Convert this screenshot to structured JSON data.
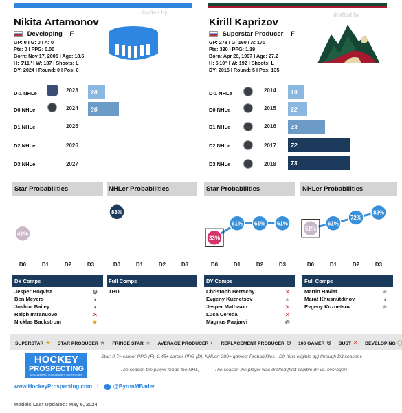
{
  "left": {
    "drafted_by": "drafted by",
    "name": "Nikita Artamonov",
    "status": "Developing",
    "position": "F",
    "stats": [
      "GP: 0 I G: 0 I A: 0",
      "Pts: 0 I PPG: 0.00",
      "Born: Nov 17, 2005 I Age: 18.6",
      "H: 5'11'' I W: 187 I Shoots: L",
      "DY: 2024 I Round: 0 I Pos: 0"
    ],
    "row_labels": [
      "D-1 NHLe",
      "D0 NHLe",
      "D1 NHLe",
      "D2 NHLe",
      "D3 NHLe"
    ],
    "years": [
      "2023",
      "2024",
      "2025",
      "2026",
      "2027"
    ],
    "nhle": [
      20,
      36,
      null,
      null,
      null
    ],
    "star_title": "Star Probabilities",
    "nhler_title": "NHLer Probabilities",
    "star_label": "41%",
    "nhler_label": "83%",
    "dy_comps_title": "DY Comps",
    "dy_comps": [
      {
        "name": "Jesper Boqvist",
        "icon": "replacement-producer-icon"
      },
      {
        "name": "Ben Meyers",
        "icon": "average-producer-icon"
      },
      {
        "name": "Joshua Bailey",
        "icon": "average-producer-icon"
      },
      {
        "name": "Ralph Intranuovo",
        "icon": "bust-icon"
      },
      {
        "name": "Nicklas Backstrom",
        "icon": "superstar-icon"
      }
    ],
    "full_comps_title": "Full Comps",
    "full_comps": [
      {
        "name": "TBD",
        "icon": ""
      }
    ]
  },
  "right": {
    "drafted_by": "drafted by",
    "name": "Kirill Kaprizov",
    "status": "Superstar Producer",
    "position": "F",
    "stats": [
      "GP: 278 I G: 160 I A: 170",
      "Pts: 330 I PPG: 1.19",
      "Born: Apr 26, 1997 I Age: 27.2",
      "H: 5'10'' I W: 192 I Shoots: L",
      "DY: 2015 I Round: 5 I Pos: 135"
    ],
    "row_labels": [
      "D-1 NHLe",
      "D0 NHLe",
      "D1 NHLe",
      "D2 NHLe",
      "D3 NHLe"
    ],
    "years": [
      "2014",
      "2015",
      "2016",
      "2017",
      "2018"
    ],
    "nhle": [
      19,
      22,
      43,
      72,
      73
    ],
    "star_title": "Star Probabilities",
    "nhler_title": "NHLer Probabilities",
    "star_labels": [
      "33%",
      "61%",
      "61%",
      "61%"
    ],
    "nhler_labels": [
      "51%",
      "61%",
      "72%",
      "82%"
    ],
    "dy_comps_title": "DY Comps",
    "dy_comps": [
      {
        "name": "Christoph Bertschy",
        "icon": "bust-icon"
      },
      {
        "name": "Evgeny Kuznetsov",
        "icon": "fringe-star-icon"
      },
      {
        "name": "Jesper Mattsson",
        "icon": "bust-icon"
      },
      {
        "name": "Luca Cereda",
        "icon": "bust-icon"
      },
      {
        "name": "Magnus Paajarvi",
        "icon": "replacement-producer-icon"
      }
    ],
    "full_comps_title": "Full Comps",
    "full_comps": [
      {
        "name": "Martin Havlat",
        "icon": "fringe-star-icon"
      },
      {
        "name": "Marat Khusnutdinov",
        "icon": "average-producer-icon"
      },
      {
        "name": "Evgeny Kuznetsov",
        "icon": "fringe-star-icon"
      }
    ]
  },
  "x_ticks": [
    "D0",
    "D1",
    "D2",
    "D3"
  ],
  "legend": [
    {
      "label": "SUPERSTAR",
      "icon": "superstar-icon"
    },
    {
      "label": "STAR PRODUCER",
      "icon": "star-producer-icon"
    },
    {
      "label": "FRINGE STAR",
      "icon": "fringe-star-icon"
    },
    {
      "label": "AVERAGE PRODUCER",
      "icon": "average-producer-icon"
    },
    {
      "label": "REPLACEMENT PRODUCER",
      "icon": "replacement-producer-icon"
    },
    {
      "label": "100 GAMER",
      "icon": "100-gamer-icon"
    },
    {
      "label": "BUST",
      "icon": "bust-icon"
    },
    {
      "label": "DEVELOPING",
      "icon": "developing-icon"
    }
  ],
  "footer": {
    "logo_line1": "HOCKEY",
    "logo_line2": "PROSPECTING",
    "logo_tagline": "DISCOVERING TOMORROW'S SUPERSTARS",
    "definition": "Star: 0.7+ career PPG (F), 0.45+ career PPG (D); NHLer: 200+ games; Probabilities - D0 (first eligible dy) through D3 seasons",
    "note_left": "The season the player made the NHL;",
    "note_right": "The season the player was drafted (first eligible dy vs. overager)",
    "website": "www.HockeyProspecting.com",
    "sep": "I",
    "twitter": "@ByronMBader",
    "updated": "Models Last Updated: May 6, 2024"
  },
  "colors": {
    "left_stripe": "#2f86e0",
    "right_stripe_top": "#154734",
    "right_stripe_bottom": "#a6192e",
    "nhle_bars": [
      "#a9cce9",
      "#8bb8e0",
      "#6b9bc6",
      "#204c7d",
      "#1b3a5c"
    ],
    "star": "#c9b8c8",
    "nhler": "#1b3a5c",
    "line": "#3a8fd9",
    "pink": "#d4336c"
  },
  "chart_data": [
    {
      "type": "bar",
      "title": "",
      "categories": [
        "D-1 NHLe",
        "D0 NHLe",
        "D1 NHLe",
        "D2 NHLe",
        "D3 NHLe"
      ],
      "series": [
        {
          "name": "Nikita Artamonov",
          "values": [
            20,
            36,
            null,
            null,
            null
          ]
        }
      ]
    },
    {
      "type": "bar",
      "title": "",
      "categories": [
        "D-1 NHLe",
        "D0 NHLe",
        "D1 NHLe",
        "D2 NHLe",
        "D3 NHLe"
      ],
      "series": [
        {
          "name": "Kirill Kaprizov",
          "values": [
            19,
            22,
            43,
            72,
            73
          ]
        }
      ]
    },
    {
      "type": "line",
      "title": "Star Probabilities",
      "x": [
        "D0",
        "D1",
        "D2",
        "D3"
      ],
      "series": [
        {
          "name": "Nikita Artamonov",
          "values": [
            41,
            null,
            null,
            null
          ]
        }
      ],
      "ylim": [
        0,
        100
      ]
    },
    {
      "type": "line",
      "title": "NHLer Probabilities",
      "x": [
        "D0",
        "D1",
        "D2",
        "D3"
      ],
      "series": [
        {
          "name": "Nikita Artamonov",
          "values": [
            83,
            null,
            null,
            null
          ]
        }
      ],
      "ylim": [
        0,
        100
      ]
    },
    {
      "type": "line",
      "title": "Star Probabilities",
      "x": [
        "D0",
        "D1",
        "D2",
        "D3"
      ],
      "series": [
        {
          "name": "Kirill Kaprizov",
          "values": [
            33,
            61,
            61,
            61
          ]
        }
      ],
      "ylim": [
        0,
        100
      ]
    },
    {
      "type": "line",
      "title": "NHLer Probabilities",
      "x": [
        "D0",
        "D1",
        "D2",
        "D3"
      ],
      "series": [
        {
          "name": "Kirill Kaprizov",
          "values": [
            51,
            61,
            72,
            82
          ]
        }
      ],
      "ylim": [
        0,
        100
      ]
    }
  ]
}
